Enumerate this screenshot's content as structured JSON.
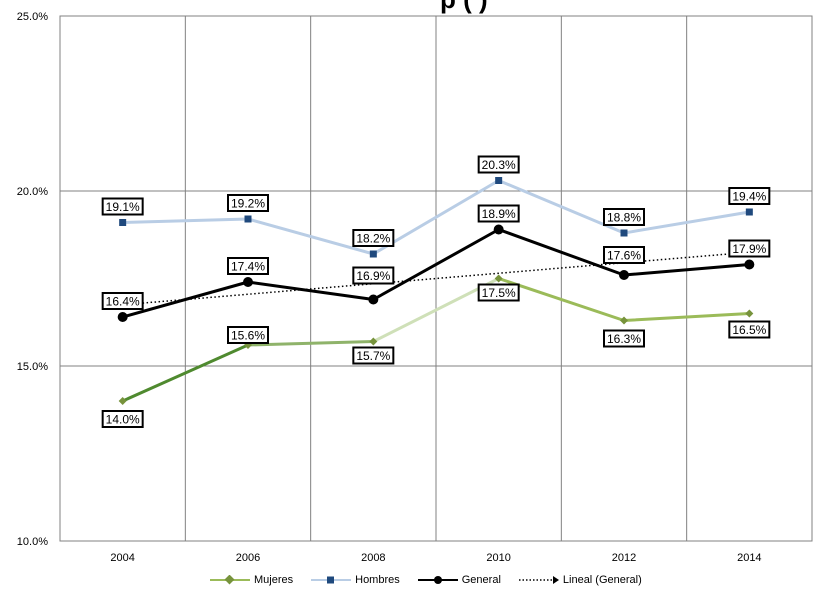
{
  "title_fragment": "p          (             )",
  "chart_data": {
    "type": "line",
    "categories": [
      "2004",
      "2006",
      "2008",
      "2010",
      "2012",
      "2014"
    ],
    "ylim": [
      10,
      25
    ],
    "yticks": [
      "10.0%",
      "15.0%",
      "20.0%",
      "25.0%"
    ],
    "grid": true,
    "legend_position": "bottom",
    "series": [
      {
        "name": "Mujeres",
        "values": [
          14.0,
          15.6,
          15.7,
          17.5,
          16.3,
          16.5
        ],
        "labels": [
          "14.0%",
          "15.6%",
          "15.7%",
          "17.5%",
          "16.3%",
          "16.5%"
        ],
        "color": "#77933c",
        "marker": "diamond"
      },
      {
        "name": "Hombres",
        "values": [
          19.1,
          19.2,
          18.2,
          20.3,
          18.8,
          19.4
        ],
        "labels": [
          "19.1%",
          "19.2%",
          "18.2%",
          "20.3%",
          "18.8%",
          "19.4%"
        ],
        "color": "#b9cde5",
        "marker": "square"
      },
      {
        "name": "General",
        "values": [
          16.4,
          17.4,
          16.9,
          18.9,
          17.6,
          17.9
        ],
        "labels": [
          "16.4%",
          "17.4%",
          "16.9%",
          "18.9%",
          "17.6%",
          "17.9%"
        ],
        "color": "#000000",
        "marker": "circle"
      }
    ],
    "trendline": {
      "name": "Lineal (General)",
      "from": 16.75,
      "to": 18.25,
      "style": "dotted"
    }
  }
}
